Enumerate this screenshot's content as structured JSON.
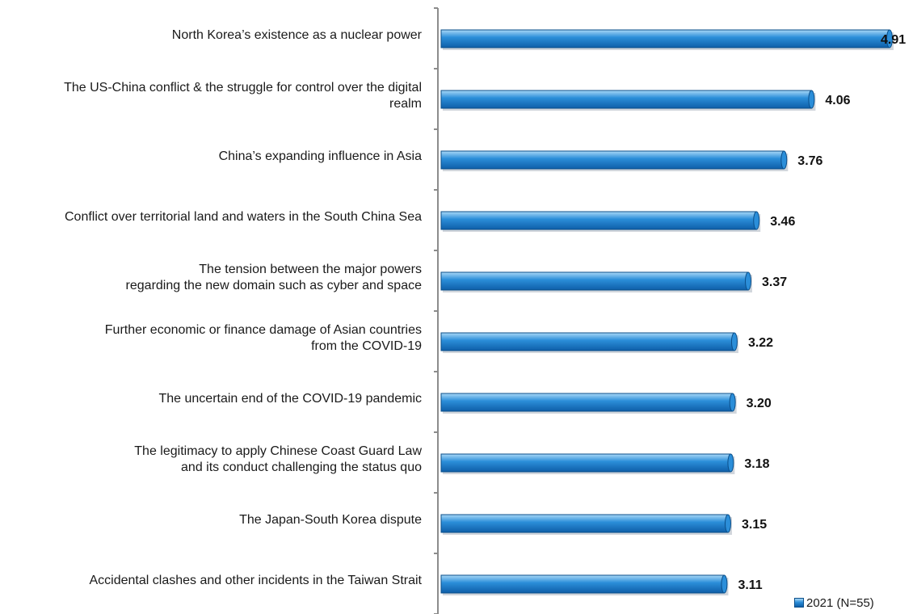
{
  "chart_data": {
    "type": "bar",
    "orientation": "horizontal",
    "categories": [
      [
        "North Korea’s existence as a nuclear power"
      ],
      [
        "The US-China conflict & the struggle for control over the digital",
        "realm"
      ],
      [
        "China’s expanding influence in Asia"
      ],
      [
        "Conflict over territorial land and waters in the South China Sea"
      ],
      [
        "The tension between the major powers",
        "regarding the new domain such as cyber and space"
      ],
      [
        "Further economic or finance damage of Asian countries",
        "from the COVID-19"
      ],
      [
        "The uncertain end of the COVID-19 pandemic"
      ],
      [
        "The legitimacy to apply Chinese Coast Guard Law",
        "and its conduct challenging the status quo"
      ],
      [
        "The Japan-South Korea dispute"
      ],
      [
        "Accidental clashes and other incidents in the Taiwan Strait"
      ]
    ],
    "series": [
      {
        "name": "2021 (N=55)",
        "values": [
          4.91,
          4.06,
          3.76,
          3.46,
          3.37,
          3.22,
          3.2,
          3.18,
          3.15,
          3.11
        ],
        "labels": [
          "4.91",
          "4.06",
          "3.76",
          "3.46",
          "3.37",
          "3.22",
          "3.20",
          "3.18",
          "3.15",
          "3.11"
        ]
      }
    ],
    "xlim": [
      0,
      4.91
    ],
    "grid": false,
    "legend_position": "bottom-right",
    "colors": {
      "bar_light": "#a9d8f7",
      "bar_mid": "#2b8ed9",
      "bar_dark": "#0e5ea8",
      "bar_edge": "#0b4f8a",
      "axis": "#8c8c8c"
    }
  }
}
